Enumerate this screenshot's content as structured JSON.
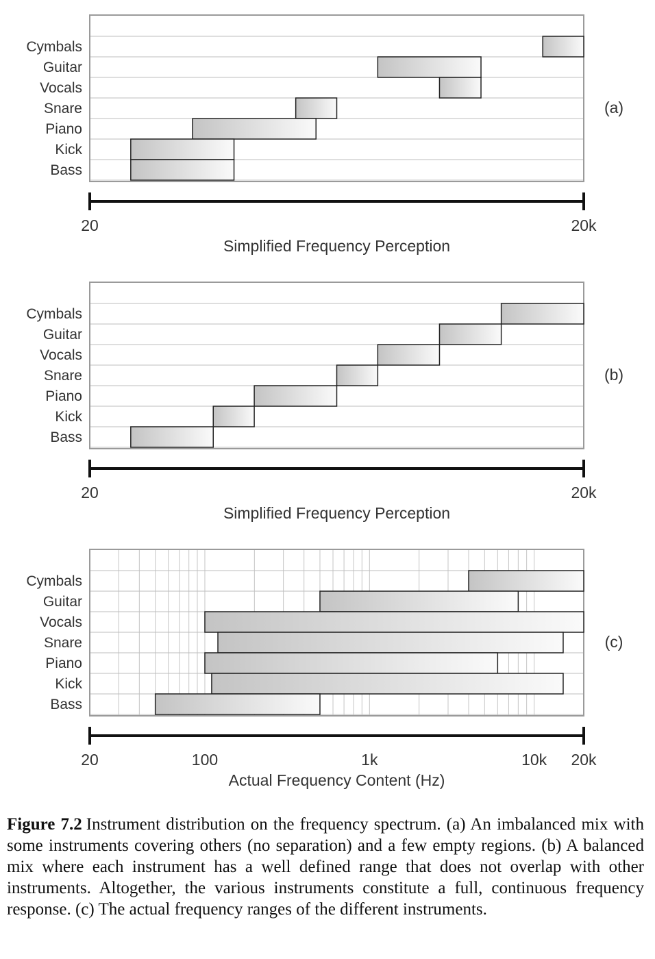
{
  "chart_data": [
    {
      "type": "bar",
      "panel_label": "(a)",
      "xlabel": "Simplified Frequency Perception",
      "x_ticks": [
        "20",
        "20k"
      ],
      "scale": "perceptual",
      "rows": [
        "Cymbals",
        "Guitar",
        "Vocals",
        "Snare",
        "Piano",
        "Kick",
        "Bass"
      ],
      "ranges": [
        {
          "instrument": "Cymbals",
          "start": 0.917,
          "end": 1.0
        },
        {
          "instrument": "Guitar",
          "start": 0.583,
          "end": 0.792
        },
        {
          "instrument": "Vocals",
          "start": 0.708,
          "end": 0.792
        },
        {
          "instrument": "Snare",
          "start": 0.417,
          "end": 0.5
        },
        {
          "instrument": "Piano",
          "start": 0.208,
          "end": 0.458
        },
        {
          "instrument": "Kick",
          "start": 0.083,
          "end": 0.292
        },
        {
          "instrument": "Bass",
          "start": 0.083,
          "end": 0.292
        }
      ]
    },
    {
      "type": "bar",
      "panel_label": "(b)",
      "xlabel": "Simplified Frequency Perception",
      "x_ticks": [
        "20",
        "20k"
      ],
      "scale": "perceptual",
      "rows": [
        "Cymbals",
        "Guitar",
        "Vocals",
        "Snare",
        "Piano",
        "Kick",
        "Bass"
      ],
      "ranges": [
        {
          "instrument": "Cymbals",
          "start": 0.833,
          "end": 1.0
        },
        {
          "instrument": "Guitar",
          "start": 0.708,
          "end": 0.833
        },
        {
          "instrument": "Vocals",
          "start": 0.583,
          "end": 0.708
        },
        {
          "instrument": "Snare",
          "start": 0.5,
          "end": 0.583
        },
        {
          "instrument": "Piano",
          "start": 0.333,
          "end": 0.5
        },
        {
          "instrument": "Kick",
          "start": 0.25,
          "end": 0.333
        },
        {
          "instrument": "Bass",
          "start": 0.083,
          "end": 0.25
        }
      ]
    },
    {
      "type": "bar",
      "panel_label": "(c)",
      "xlabel": "Actual Frequency Content (Hz)",
      "x_ticks": [
        "20",
        "100",
        "1k",
        "10k",
        "20k"
      ],
      "x_tick_values": [
        20,
        100,
        1000,
        10000,
        20000
      ],
      "scale": "log",
      "xlim": [
        20,
        20000
      ],
      "rows": [
        "Cymbals",
        "Guitar",
        "Vocals",
        "Snare",
        "Piano",
        "Kick",
        "Bass"
      ],
      "ranges": [
        {
          "instrument": "Cymbals",
          "start": 4000,
          "end": 20000
        },
        {
          "instrument": "Guitar",
          "start": 500,
          "end": 8000
        },
        {
          "instrument": "Vocals",
          "start": 100,
          "end": 20000
        },
        {
          "instrument": "Snare",
          "start": 120,
          "end": 15000
        },
        {
          "instrument": "Piano",
          "start": 100,
          "end": 6000
        },
        {
          "instrument": "Kick",
          "start": 110,
          "end": 15000
        },
        {
          "instrument": "Bass",
          "start": 50,
          "end": 500
        }
      ]
    }
  ],
  "caption": {
    "figure_number": "Figure 7.2",
    "text": "Instrument distribution on the frequency spectrum. (a) An imbalanced mix with some instruments covering others (no separation) and a few empty regions. (b) A balanced mix where each instrument has a well defined range that does not overlap with other instruments. Altogether, the various instruments constitute a full, continuous frequency response. (c) The actual frequency ranges of the different instruments."
  },
  "colors": {
    "bar_gradient_start": "#c4c4c4",
    "bar_gradient_end": "#fafafa",
    "bar_border": "#222222",
    "frame": "#9a9a9a",
    "row_line": "#bdbdbd",
    "axis": "#111111"
  }
}
